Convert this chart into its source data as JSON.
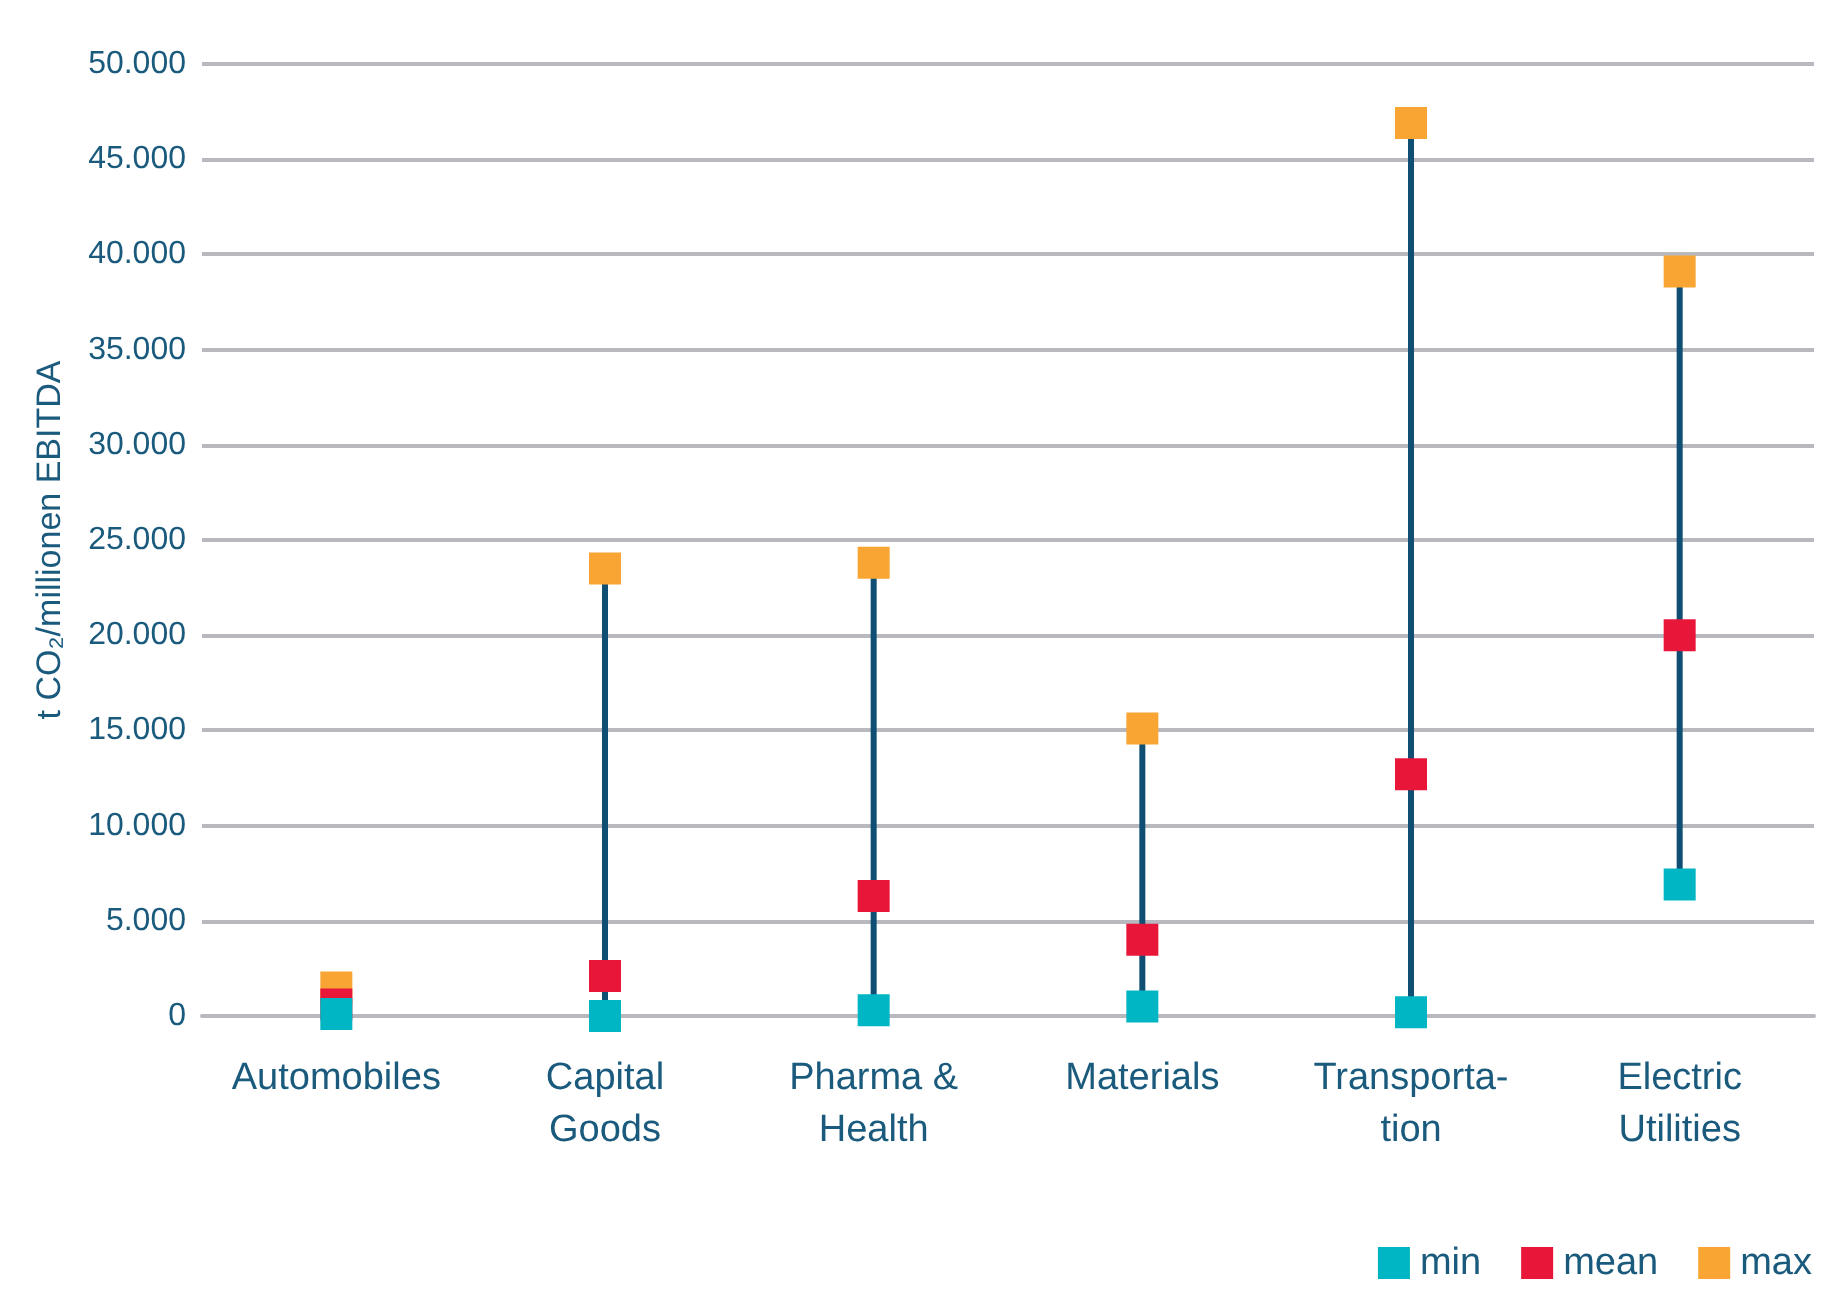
{
  "chart_data": {
    "type": "scatter",
    "ylabel": "t CO₂/millionen EBITDA",
    "categories": [
      "Automobiles",
      "Capital\nGoods",
      "Pharma &\nHealth",
      "Materials",
      "Transporta-\ntion",
      "Electric\nUtilities"
    ],
    "series": [
      {
        "name": "min",
        "color": "#00b5c4",
        "values": [
          100,
          0,
          300,
          500,
          200,
          6900
        ]
      },
      {
        "name": "mean",
        "color": "#e8173a",
        "values": [
          600,
          2100,
          6300,
          4000,
          12700,
          20000
        ]
      },
      {
        "name": "max",
        "color": "#f9a533",
        "values": [
          1500,
          23500,
          23800,
          15100,
          46900,
          39100
        ]
      }
    ],
    "ylim": [
      0,
      50000
    ],
    "yticks": [
      0,
      {
        "value": 5000,
        "label": "5.000"
      },
      {
        "value": 10000,
        "label": "10.000"
      },
      {
        "value": 15000,
        "label": "15.000"
      },
      {
        "value": 20000,
        "label": "20.000"
      },
      {
        "value": 25000,
        "label": "25.000"
      },
      {
        "value": 30000,
        "label": "30.000"
      },
      {
        "value": 35000,
        "label": "35.000"
      },
      {
        "value": 40000,
        "label": "40.000"
      },
      {
        "value": 45000,
        "label": "45.000"
      },
      {
        "value": 50000,
        "label": "50.000"
      }
    ],
    "grid": "y",
    "legend": "bottom right",
    "marker": "square"
  }
}
